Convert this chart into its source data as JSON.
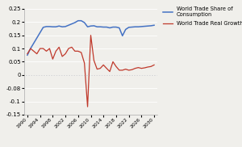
{
  "years": [
    1990,
    1991,
    1992,
    1993,
    1994,
    1995,
    1996,
    1997,
    1998,
    1999,
    2000,
    2001,
    2002,
    2003,
    2004,
    2005,
    2006,
    2007,
    2008,
    2009,
    2010,
    2011,
    2012,
    2013,
    2014,
    2015,
    2016,
    2017,
    2018,
    2019,
    2020,
    2021,
    2022,
    2023,
    2024,
    2025,
    2026,
    2027,
    2028,
    2029,
    2030
  ],
  "share": [
    0.075,
    0.1,
    0.12,
    0.14,
    0.16,
    0.18,
    0.183,
    0.183,
    0.182,
    0.182,
    0.185,
    0.182,
    0.183,
    0.188,
    0.193,
    0.198,
    0.205,
    0.205,
    0.198,
    0.182,
    0.185,
    0.186,
    0.182,
    0.182,
    0.181,
    0.181,
    0.178,
    0.181,
    0.181,
    0.178,
    0.148,
    0.172,
    0.18,
    0.181,
    0.182,
    0.182,
    0.183,
    0.184,
    0.185,
    0.186,
    0.188
  ],
  "growth": [
    0.08,
    0.1,
    0.09,
    0.08,
    0.1,
    0.1,
    0.09,
    0.1,
    0.06,
    0.09,
    0.105,
    0.07,
    0.08,
    0.1,
    0.105,
    0.09,
    0.09,
    0.085,
    0.045,
    -0.12,
    0.15,
    0.055,
    0.022,
    0.025,
    0.038,
    0.025,
    0.013,
    0.05,
    0.032,
    0.018,
    0.018,
    0.022,
    0.018,
    0.02,
    0.025,
    0.028,
    0.025,
    0.027,
    0.03,
    0.032,
    0.038
  ],
  "share_color": "#4472c4",
  "growth_color": "#c0392b",
  "share_label": "World Trade Share of\nConsumption",
  "growth_label": "World Trade Real Growth",
  "ylim": [
    -0.15,
    0.25
  ],
  "yticks": [
    -0.15,
    -0.1,
    -0.05,
    0,
    0.05,
    0.1,
    0.15,
    0.2,
    0.25
  ],
  "xtick_years": [
    1990,
    1994,
    1998,
    2002,
    2006,
    2010,
    2014,
    2018,
    2022,
    2026,
    2030
  ],
  "background_color": "#f0efeb",
  "plot_bg": "#f0efeb",
  "grid_color": "#ffffff",
  "spine_color": "#aaaaaa"
}
